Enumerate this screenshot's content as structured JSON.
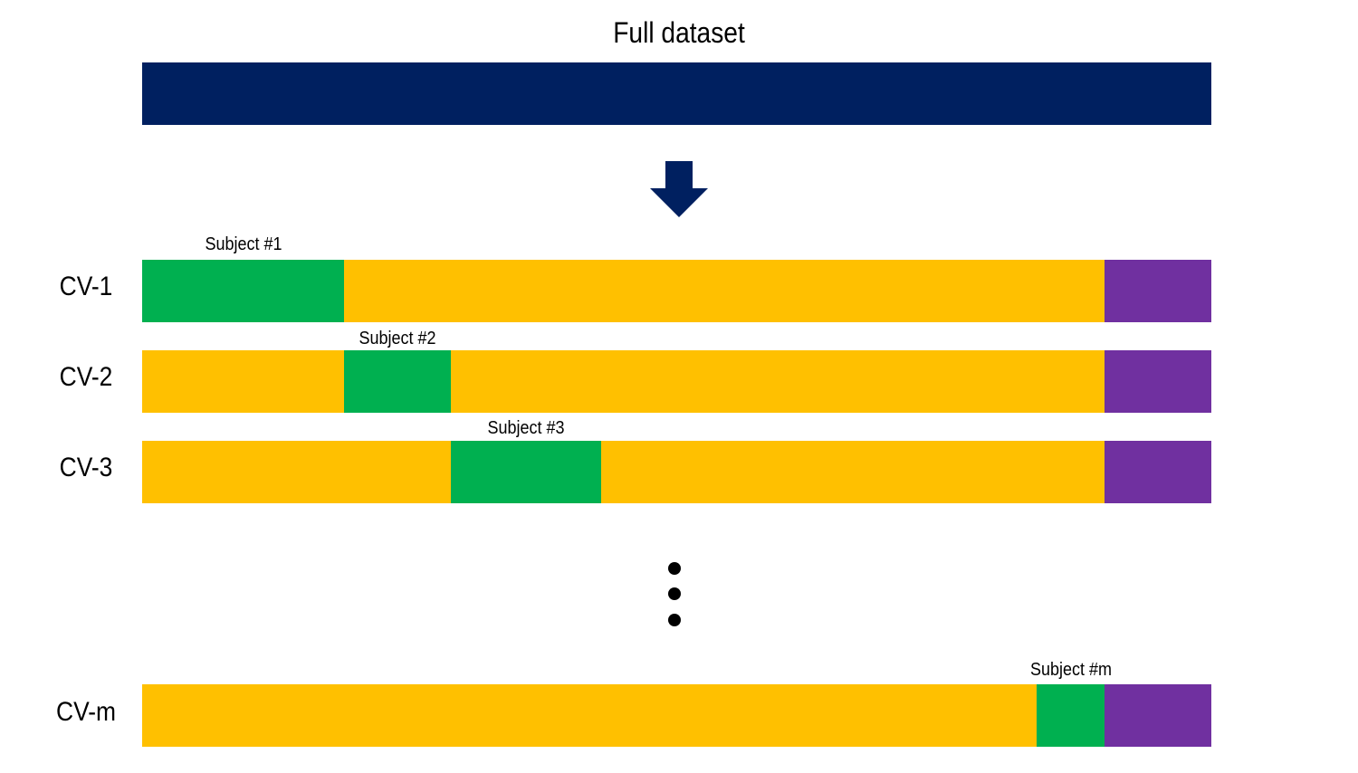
{
  "title": "Full dataset",
  "colors": {
    "full": "#002060",
    "train": "#FFC000",
    "test": "#00B050",
    "holdout": "#7030A0",
    "arrow": "#002060",
    "dots": "#000000"
  },
  "rows": [
    {
      "label": "CV-1",
      "subject": "Subject #1",
      "segments": [
        {
          "kind": "test",
          "start": 0.0,
          "end": 0.189
        },
        {
          "kind": "train",
          "start": 0.189,
          "end": 0.9
        },
        {
          "kind": "holdout",
          "start": 0.9,
          "end": 1.0
        }
      ]
    },
    {
      "label": "CV-2",
      "subject": "Subject #2",
      "segments": [
        {
          "kind": "train",
          "start": 0.0,
          "end": 0.189
        },
        {
          "kind": "test",
          "start": 0.189,
          "end": 0.289
        },
        {
          "kind": "train",
          "start": 0.289,
          "end": 0.9
        },
        {
          "kind": "holdout",
          "start": 0.9,
          "end": 1.0
        }
      ]
    },
    {
      "label": "CV-3",
      "subject": "Subject #3",
      "segments": [
        {
          "kind": "train",
          "start": 0.0,
          "end": 0.289
        },
        {
          "kind": "test",
          "start": 0.289,
          "end": 0.429
        },
        {
          "kind": "train",
          "start": 0.429,
          "end": 0.9
        },
        {
          "kind": "holdout",
          "start": 0.9,
          "end": 1.0
        }
      ]
    },
    {
      "label": "CV-m",
      "subject": "Subject #m",
      "segments": [
        {
          "kind": "train",
          "start": 0.0,
          "end": 0.837
        },
        {
          "kind": "test",
          "start": 0.837,
          "end": 0.9
        },
        {
          "kind": "holdout",
          "start": 0.9,
          "end": 1.0
        }
      ]
    }
  ]
}
